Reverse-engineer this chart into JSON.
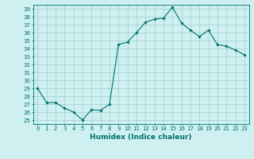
{
  "x": [
    0,
    1,
    2,
    3,
    4,
    5,
    6,
    7,
    8,
    9,
    10,
    11,
    12,
    13,
    14,
    15,
    16,
    17,
    18,
    19,
    20,
    21,
    22,
    23
  ],
  "y": [
    29,
    27.2,
    27.2,
    26.5,
    26.0,
    25.0,
    26.3,
    26.2,
    27.0,
    34.5,
    34.8,
    36.0,
    37.3,
    37.7,
    37.8,
    39.2,
    37.2,
    36.3,
    35.5,
    36.3,
    34.5,
    34.3,
    33.8,
    33.2
  ],
  "line_color": "#007070",
  "marker": "D",
  "marker_size": 1.8,
  "bg_color": "#cff0f0",
  "grid_color": "#9ecece",
  "xlabel": "Humidex (Indice chaleur)",
  "xlim": [
    -0.5,
    23.5
  ],
  "ylim": [
    24.5,
    39.5
  ],
  "yticks": [
    25,
    26,
    27,
    28,
    29,
    30,
    31,
    32,
    33,
    34,
    35,
    36,
    37,
    38,
    39
  ],
  "xticks": [
    0,
    1,
    2,
    3,
    4,
    5,
    6,
    7,
    8,
    9,
    10,
    11,
    12,
    13,
    14,
    15,
    16,
    17,
    18,
    19,
    20,
    21,
    22,
    23
  ],
  "tick_color": "#007070",
  "tick_label_fontsize": 5.0,
  "xlabel_fontsize": 6.5,
  "line_width": 0.8
}
